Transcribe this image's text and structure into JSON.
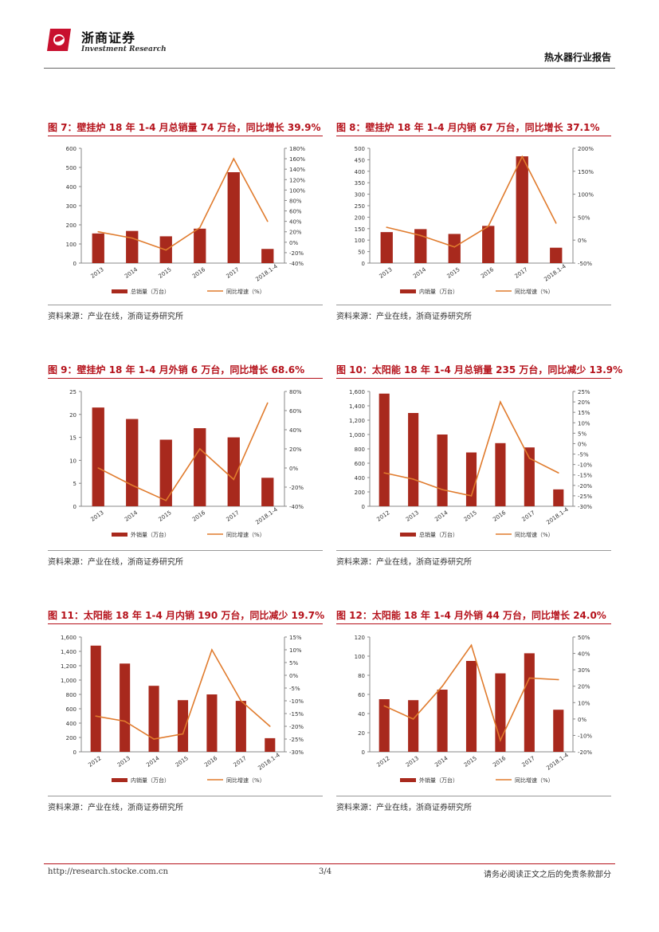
{
  "header": {
    "brand_cn": "浙商证券",
    "brand_en": "Investment Research",
    "report_title": "热水器行业报告",
    "logo_color": "#c8102e"
  },
  "colors": {
    "bar": "#a8291d",
    "line": "#e07b2d",
    "title": "#b5121b"
  },
  "figures": [
    {
      "title": "图 7：壁挂炉 18 年 1-4 月总销量 74 万台，同比增长 39.9%",
      "source": "资料来源：产业在线，浙商证券研究所"
    },
    {
      "title": "图 8：壁挂炉 18 年 1-4 月内销 67 万台，同比增长 37.1%",
      "source": "资料来源：产业在线，浙商证券研究所"
    },
    {
      "title": "图 9：壁挂炉 18 年 1-4 月外销 6 万台，同比增长 68.6%",
      "source": "资料来源：产业在线，浙商证券研究所"
    },
    {
      "title": "图 10：太阳能 18 年 1-4 月总销量 235 万台，同比减少 13.9%",
      "source": "资料来源：产业在线，浙商证券研究所"
    },
    {
      "title": "图 11：太阳能 18 年 1-4 月内销 190 万台，同比减少 19.7%",
      "source": "资料来源：产业在线，浙商证券研究所"
    },
    {
      "title": "图 12：太阳能 18 年 1-4 月外销 44 万台，同比增长 24.0%",
      "source": "资料来源：产业在线，浙商证券研究所"
    }
  ],
  "chart_data": [
    {
      "type": "bar",
      "categories": [
        "2013",
        "2014",
        "2015",
        "2016",
        "2017",
        "2018.1-4"
      ],
      "series": [
        {
          "name": "总销量（万台）",
          "values": [
            155,
            168,
            140,
            180,
            475,
            74
          ],
          "axis": "left"
        },
        {
          "name": "同比增速（%）",
          "values": [
            20,
            8,
            -15,
            28,
            160,
            40
          ],
          "axis": "right",
          "kind": "line"
        }
      ],
      "ylim": [
        0,
        600
      ],
      "yticks": [
        0,
        100,
        200,
        300,
        400,
        500,
        600
      ],
      "ytick_labels": [
        "0",
        "100",
        "200",
        "300",
        "400",
        "500",
        "600"
      ],
      "y2lim": [
        -40,
        180
      ],
      "y2ticks": [
        -40,
        -20,
        0,
        20,
        40,
        60,
        80,
        100,
        120,
        140,
        160,
        180
      ],
      "y2tick_labels": [
        "-40%",
        "-20%",
        "0%",
        "20%",
        "40%",
        "60%",
        "80%",
        "100%",
        "120%",
        "140%",
        "160%",
        "180%"
      ],
      "legend": "bottom"
    },
    {
      "type": "bar",
      "categories": [
        "2013",
        "2014",
        "2015",
        "2016",
        "2017",
        "2018.1-4"
      ],
      "series": [
        {
          "name": "内销量（万台）",
          "values": [
            135,
            148,
            127,
            162,
            465,
            67
          ],
          "axis": "left"
        },
        {
          "name": "同比增速（%）",
          "values": [
            28,
            10,
            -15,
            30,
            182,
            37
          ],
          "axis": "right",
          "kind": "line"
        }
      ],
      "ylim": [
        0,
        500
      ],
      "yticks": [
        0,
        50,
        100,
        150,
        200,
        250,
        300,
        350,
        400,
        450,
        500
      ],
      "ytick_labels": [
        "0",
        "50",
        "100",
        "150",
        "200",
        "250",
        "300",
        "350",
        "400",
        "450",
        "500"
      ],
      "y2lim": [
        -50,
        200
      ],
      "y2ticks": [
        -50,
        0,
        50,
        100,
        150,
        200
      ],
      "y2tick_labels": [
        "-50%",
        "0%",
        "50%",
        "100%",
        "150%",
        "200%"
      ],
      "legend": "bottom"
    },
    {
      "type": "bar",
      "categories": [
        "2013",
        "2014",
        "2015",
        "2016",
        "2017",
        "2018.1-4"
      ],
      "series": [
        {
          "name": "外销量（万台）",
          "values": [
            21.5,
            19,
            14.5,
            17,
            15,
            6.2
          ],
          "axis": "left"
        },
        {
          "name": "同比增速（%）",
          "values": [
            0,
            -18,
            -34,
            20,
            -12,
            68
          ],
          "axis": "right",
          "kind": "line"
        }
      ],
      "ylim": [
        0,
        25
      ],
      "yticks": [
        0,
        5,
        10,
        15,
        20,
        25
      ],
      "ytick_labels": [
        "0",
        "5",
        "10",
        "15",
        "20",
        "25"
      ],
      "y2lim": [
        -40,
        80
      ],
      "y2ticks": [
        -40,
        -20,
        0,
        20,
        40,
        60,
        80
      ],
      "y2tick_labels": [
        "-40%",
        "-20%",
        "0%",
        "20%",
        "40%",
        "60%",
        "80%"
      ],
      "legend": "bottom"
    },
    {
      "type": "bar",
      "categories": [
        "2012",
        "2013",
        "2014",
        "2015",
        "2016",
        "2017",
        "2018.1-4"
      ],
      "series": [
        {
          "name": "总销量（万台）",
          "values": [
            1570,
            1300,
            1000,
            750,
            880,
            820,
            235
          ],
          "axis": "left"
        },
        {
          "name": "同比增速（%）",
          "values": [
            -14,
            -17,
            -22,
            -25,
            20,
            -7,
            -14
          ],
          "axis": "right",
          "kind": "line"
        }
      ],
      "ylim": [
        0,
        1600
      ],
      "yticks": [
        0,
        200,
        400,
        600,
        800,
        1000,
        1200,
        1400,
        1600
      ],
      "ytick_labels": [
        "0",
        "200",
        "400",
        "600",
        "800",
        "1,000",
        "1,200",
        "1,400",
        "1,600"
      ],
      "y2lim": [
        -30,
        25
      ],
      "y2ticks": [
        -30,
        -25,
        -20,
        -15,
        -10,
        -5,
        0,
        5,
        10,
        15,
        20,
        25
      ],
      "y2tick_labels": [
        "-30%",
        "-25%",
        "-20%",
        "-15%",
        "-10%",
        "-5%",
        "0%",
        "5%",
        "10%",
        "15%",
        "20%",
        "25%"
      ],
      "legend": "bottom"
    },
    {
      "type": "bar",
      "categories": [
        "2012",
        "2013",
        "2014",
        "2015",
        "2016",
        "2017",
        "2018.1-4"
      ],
      "series": [
        {
          "name": "内销量（万台）",
          "values": [
            1480,
            1230,
            920,
            720,
            800,
            710,
            190
          ],
          "axis": "left"
        },
        {
          "name": "同比增速（%）",
          "values": [
            -16,
            -18,
            -25,
            -23,
            10,
            -10,
            -20
          ],
          "axis": "right",
          "kind": "line"
        }
      ],
      "ylim": [
        0,
        1600
      ],
      "yticks": [
        0,
        200,
        400,
        600,
        800,
        1000,
        1200,
        1400,
        1600
      ],
      "ytick_labels": [
        "0",
        "200",
        "400",
        "600",
        "800",
        "1,000",
        "1,200",
        "1,400",
        "1,600"
      ],
      "y2lim": [
        -30,
        15
      ],
      "y2ticks": [
        -30,
        -25,
        -20,
        -15,
        -10,
        -5,
        0,
        5,
        10,
        15
      ],
      "y2tick_labels": [
        "-30%",
        "-25%",
        "-20%",
        "-15%",
        "-10%",
        "-5%",
        "0%",
        "5%",
        "10%",
        "15%"
      ],
      "legend": "bottom"
    },
    {
      "type": "bar",
      "categories": [
        "2012",
        "2013",
        "2014",
        "2015",
        "2016",
        "2017",
        "2018.1-4"
      ],
      "series": [
        {
          "name": "外销量（万台）",
          "values": [
            55,
            54,
            65,
            95,
            82,
            103,
            44
          ],
          "axis": "left"
        },
        {
          "name": "同比增速（%）",
          "values": [
            8,
            0,
            20,
            45,
            -13,
            25,
            24
          ],
          "axis": "right",
          "kind": "line"
        }
      ],
      "ylim": [
        0,
        120
      ],
      "yticks": [
        0,
        20,
        40,
        60,
        80,
        100,
        120
      ],
      "ytick_labels": [
        "0",
        "20",
        "40",
        "60",
        "80",
        "100",
        "120"
      ],
      "y2lim": [
        -20,
        50
      ],
      "y2ticks": [
        -20,
        -10,
        0,
        10,
        20,
        30,
        40,
        50
      ],
      "y2tick_labels": [
        "-20%",
        "-10%",
        "0%",
        "10%",
        "20%",
        "30%",
        "40%",
        "50%"
      ],
      "legend": "bottom"
    }
  ],
  "footer": {
    "url": "http://research.stocke.com.cn",
    "page": "3/4",
    "note": "请务必阅读正文之后的免责条款部分"
  }
}
